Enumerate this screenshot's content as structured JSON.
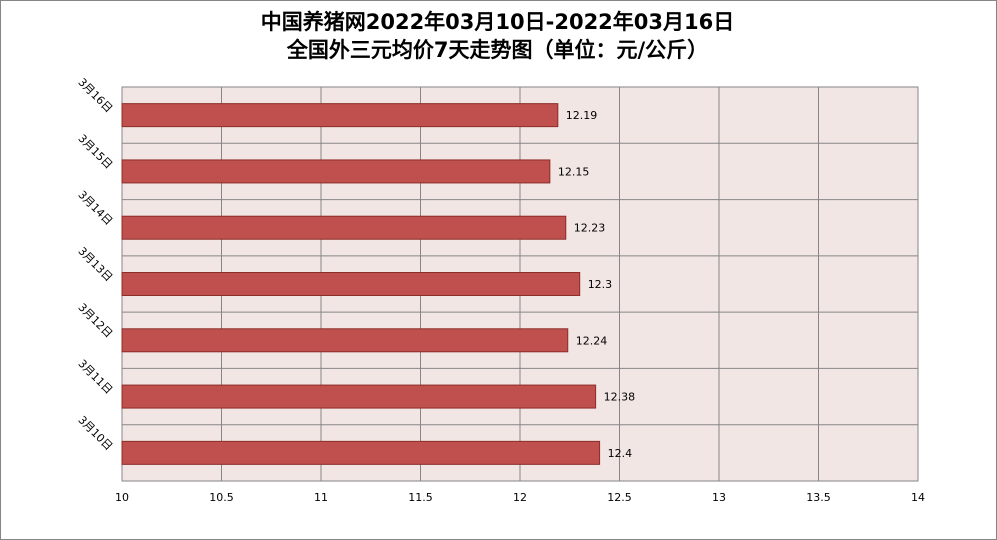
{
  "chart_data": {
    "type": "bar",
    "orientation": "horizontal",
    "title_line1": "中国养猪网2022年03月10日-2022年03月16日",
    "title_line2": "全国外三元均价7天走势图（单位：元/公斤）",
    "categories": [
      "3月10日",
      "3月11日",
      "3月12日",
      "3月13日",
      "3月14日",
      "3月15日",
      "3月16日"
    ],
    "values": [
      12.4,
      12.38,
      12.24,
      12.3,
      12.23,
      12.15,
      12.19
    ],
    "value_labels": [
      "12.4",
      "12.38",
      "12.24",
      "12.3",
      "12.23",
      "12.15",
      "12.19"
    ],
    "xlim": [
      10,
      14
    ],
    "x_ticks": [
      "10",
      "10.5",
      "11",
      "11.5",
      "12",
      "12.5",
      "13",
      "13.5",
      "14"
    ],
    "grid": true,
    "legend": "none",
    "colors": {
      "bar_fill": "#c0504d",
      "bar_stroke": "#8c2d2a",
      "plot_bg": "#f2e6e5",
      "grid": "#868686"
    }
  }
}
